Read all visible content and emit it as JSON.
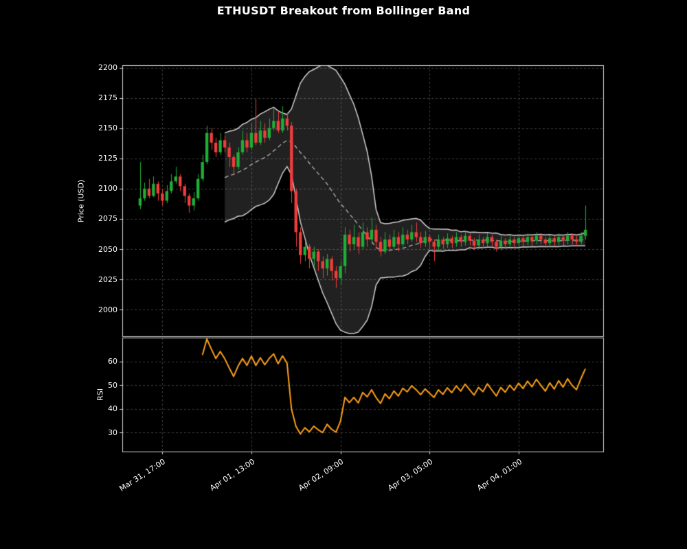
{
  "chart_data": {
    "type": "candlestick",
    "title": "ETHUSDT Breakout from Bollinger Band",
    "colors": {
      "background": "#000000",
      "up": "#1fae35",
      "down": "#f23c3c",
      "band_line": "#cfcfcf",
      "band_fill": "rgba(255,255,255,0.13)",
      "band_mid": "#b3b3b3",
      "rsi_line": "#ffa018",
      "grid": "#4f4f4f",
      "spine": "#d4d4d4",
      "text": "#ffffff"
    },
    "x": {
      "xlim": [
        -4,
        104
      ],
      "tick_indices": [
        5,
        25,
        45,
        65,
        85
      ],
      "tick_labels": [
        "Mar 31, 17:00",
        "Apr 01, 13:00",
        "Apr 02, 09:00",
        "Apr 03, 05:00",
        "Apr 04, 01:00"
      ]
    },
    "price_panel": {
      "ylabel": "Price (USD)",
      "ylim": [
        1978,
        2202
      ],
      "yticks": [
        2000,
        2025,
        2050,
        2075,
        2100,
        2125,
        2150,
        2175,
        2200
      ],
      "bollinger": {
        "period": 20,
        "std_mult": 2
      },
      "candles_ohlc": [
        [
          2086,
          2122,
          2083,
          2092
        ],
        [
          2092,
          2105,
          2090,
          2100
        ],
        [
          2100,
          2108,
          2092,
          2094
        ],
        [
          2094,
          2110,
          2093,
          2104
        ],
        [
          2104,
          2106,
          2090,
          2096
        ],
        [
          2096,
          2100,
          2086,
          2090
        ],
        [
          2090,
          2103,
          2088,
          2098
        ],
        [
          2098,
          2112,
          2096,
          2106
        ],
        [
          2106,
          2118,
          2104,
          2110
        ],
        [
          2110,
          2112,
          2098,
          2102
        ],
        [
          2102,
          2104,
          2088,
          2094
        ],
        [
          2094,
          2096,
          2080,
          2086
        ],
        [
          2086,
          2097,
          2082,
          2092
        ],
        [
          2092,
          2112,
          2090,
          2108
        ],
        [
          2108,
          2128,
          2106,
          2122
        ],
        [
          2122,
          2152,
          2120,
          2146
        ],
        [
          2146,
          2150,
          2132,
          2138
        ],
        [
          2138,
          2142,
          2126,
          2130
        ],
        [
          2130,
          2146,
          2128,
          2140
        ],
        [
          2140,
          2144,
          2130,
          2134
        ],
        [
          2134,
          2138,
          2118,
          2126
        ],
        [
          2126,
          2128,
          2112,
          2118
        ],
        [
          2118,
          2134,
          2116,
          2130
        ],
        [
          2130,
          2148,
          2128,
          2140
        ],
        [
          2140,
          2146,
          2130,
          2134
        ],
        [
          2134,
          2154,
          2132,
          2146
        ],
        [
          2146,
          2174,
          2136,
          2138
        ],
        [
          2138,
          2156,
          2136,
          2148
        ],
        [
          2148,
          2154,
          2138,
          2142
        ],
        [
          2142,
          2158,
          2140,
          2150
        ],
        [
          2150,
          2166,
          2148,
          2156
        ],
        [
          2156,
          2164,
          2146,
          2148
        ],
        [
          2148,
          2168,
          2146,
          2158
        ],
        [
          2158,
          2163,
          2148,
          2152
        ],
        [
          2152,
          2155,
          2088,
          2098
        ],
        [
          2098,
          2100,
          2052,
          2064
        ],
        [
          2064,
          2068,
          2038,
          2045
        ],
        [
          2045,
          2056,
          2040,
          2052
        ],
        [
          2052,
          2054,
          2034,
          2042
        ],
        [
          2042,
          2052,
          2036,
          2048
        ],
        [
          2048,
          2050,
          2032,
          2040
        ],
        [
          2040,
          2044,
          2026,
          2034
        ],
        [
          2034,
          2046,
          2028,
          2042
        ],
        [
          2042,
          2044,
          2024,
          2032
        ],
        [
          2032,
          2036,
          2018,
          2026
        ],
        [
          2026,
          2040,
          2020,
          2036
        ],
        [
          2036,
          2068,
          2030,
          2062
        ],
        [
          2062,
          2066,
          2048,
          2054
        ],
        [
          2054,
          2070,
          2050,
          2060
        ],
        [
          2060,
          2064,
          2046,
          2052
        ],
        [
          2052,
          2072,
          2050,
          2064
        ],
        [
          2064,
          2068,
          2052,
          2058
        ],
        [
          2058,
          2076,
          2054,
          2066
        ],
        [
          2066,
          2070,
          2050,
          2056
        ],
        [
          2056,
          2060,
          2044,
          2048
        ],
        [
          2048,
          2064,
          2046,
          2058
        ],
        [
          2058,
          2062,
          2048,
          2052
        ],
        [
          2052,
          2066,
          2050,
          2060
        ],
        [
          2060,
          2064,
          2048,
          2054
        ],
        [
          2054,
          2068,
          2052,
          2062
        ],
        [
          2062,
          2066,
          2054,
          2058
        ],
        [
          2058,
          2070,
          2056,
          2064
        ],
        [
          2064,
          2072,
          2056,
          2060
        ],
        [
          2060,
          2064,
          2051,
          2055
        ],
        [
          2055,
          2065,
          2052,
          2060
        ],
        [
          2060,
          2062,
          2050,
          2056
        ],
        [
          2056,
          2058,
          2040,
          2052
        ],
        [
          2052,
          2062,
          2048,
          2058
        ],
        [
          2058,
          2060,
          2050,
          2054
        ],
        [
          2054,
          2063,
          2051,
          2059
        ],
        [
          2059,
          2061,
          2051,
          2055
        ],
        [
          2055,
          2064,
          2052,
          2060
        ],
        [
          2060,
          2062,
          2052,
          2056
        ],
        [
          2056,
          2065,
          2053,
          2061
        ],
        [
          2061,
          2063,
          2053,
          2057
        ],
        [
          2057,
          2059,
          2049,
          2053
        ],
        [
          2053,
          2062,
          2050,
          2058
        ],
        [
          2058,
          2060,
          2051,
          2055
        ],
        [
          2055,
          2063,
          2052,
          2060
        ],
        [
          2060,
          2062,
          2052,
          2056
        ],
        [
          2056,
          2058,
          2048,
          2052
        ],
        [
          2052,
          2061,
          2049,
          2057
        ],
        [
          2057,
          2059,
          2050,
          2054
        ],
        [
          2054,
          2061,
          2051,
          2058
        ],
        [
          2058,
          2060,
          2051,
          2055
        ],
        [
          2055,
          2062,
          2052,
          2059
        ],
        [
          2059,
          2061,
          2052,
          2056
        ],
        [
          2056,
          2063,
          2053,
          2060
        ],
        [
          2060,
          2062,
          2053,
          2057
        ],
        [
          2057,
          2064,
          2054,
          2061
        ],
        [
          2061,
          2063,
          2054,
          2058
        ],
        [
          2058,
          2060,
          2051,
          2055
        ],
        [
          2055,
          2062,
          2052,
          2059
        ],
        [
          2059,
          2061,
          2052,
          2056
        ],
        [
          2056,
          2063,
          2053,
          2060
        ],
        [
          2060,
          2062,
          2053,
          2057
        ],
        [
          2057,
          2064,
          2054,
          2061
        ],
        [
          2061,
          2063,
          2054,
          2058
        ],
        [
          2058,
          2062,
          2052,
          2056
        ],
        [
          2056,
          2064,
          2054,
          2061
        ],
        [
          2061,
          2086,
          2058,
          2066
        ]
      ]
    },
    "rsi_panel": {
      "ylabel": "RSI",
      "ylim": [
        22,
        70
      ],
      "yticks": [
        30,
        40,
        50,
        60
      ],
      "rsi_period": 14
    }
  }
}
